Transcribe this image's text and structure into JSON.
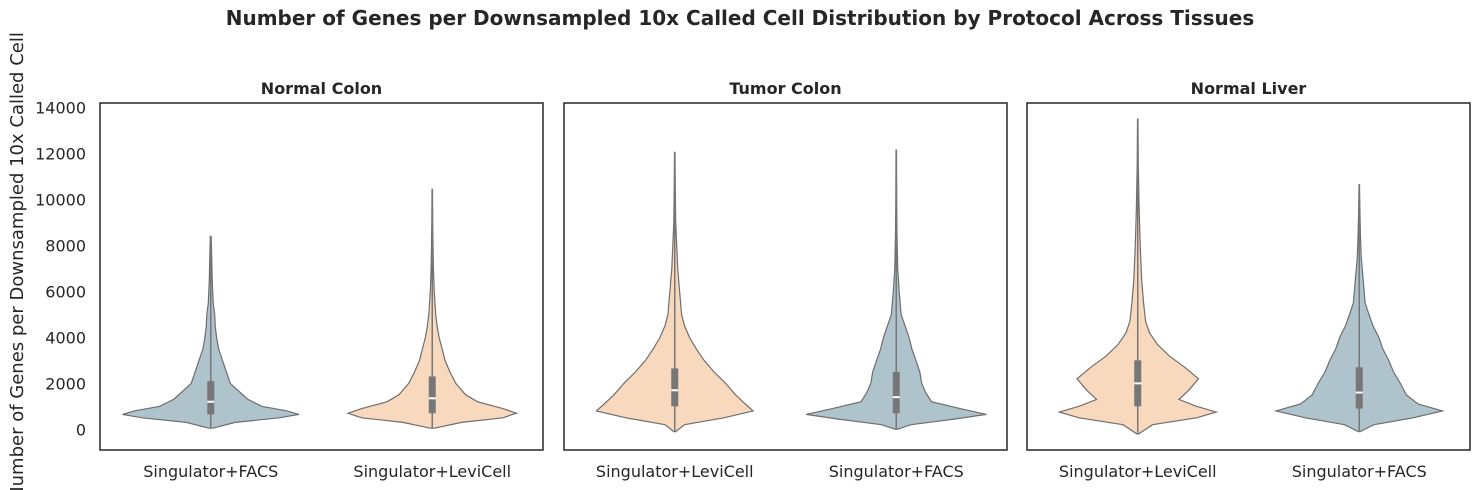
{
  "chart_data": {
    "type": "violin",
    "title": "Number of Genes per Downsampled 10x Called Cell Distribution by Protocol Across Tissues",
    "ylabel": "Number of Genes per Downsampled 10x Called Cell",
    "ylim": [
      -900,
      14200
    ],
    "yticks": [
      0,
      2000,
      4000,
      6000,
      8000,
      10000,
      12000,
      14000
    ],
    "colors": {
      "Singulator+FACS": "#aec3cb",
      "Singulator+LeviCell": "#f9d9be"
    },
    "panels": [
      {
        "title": "Normal Colon",
        "categories": [
          "Singulator+FACS",
          "Singulator+LeviCell"
        ],
        "series": [
          {
            "protocol": "Singulator+FACS",
            "min": 50,
            "q1": 650,
            "median": 1200,
            "q3": 2100,
            "whisker_high": 4100,
            "max": 8400,
            "density": [
              [
                50,
                0.02
              ],
              [
                300,
                0.25
              ],
              [
                500,
                0.7
              ],
              [
                650,
                0.9
              ],
              [
                800,
                0.78
              ],
              [
                1000,
                0.52
              ],
              [
                1300,
                0.38
              ],
              [
                1600,
                0.3
              ],
              [
                2000,
                0.2
              ],
              [
                2500,
                0.16
              ],
              [
                3000,
                0.12
              ],
              [
                3500,
                0.08
              ],
              [
                4000,
                0.06
              ],
              [
                4500,
                0.045
              ],
              [
                5000,
                0.04
              ],
              [
                5500,
                0.025
              ],
              [
                6500,
                0.015
              ],
              [
                7500,
                0.01
              ],
              [
                8400,
                0.005
              ]
            ]
          },
          {
            "protocol": "Singulator+LeviCell",
            "min": 50,
            "q1": 700,
            "median": 1350,
            "q3": 2300,
            "whisker_high": 4400,
            "max": 10450,
            "density": [
              [
                50,
                0.02
              ],
              [
                300,
                0.3
              ],
              [
                500,
                0.72
              ],
              [
                700,
                0.86
              ],
              [
                900,
                0.72
              ],
              [
                1200,
                0.46
              ],
              [
                1500,
                0.34
              ],
              [
                2000,
                0.24
              ],
              [
                2500,
                0.18
              ],
              [
                3000,
                0.13
              ],
              [
                3500,
                0.1
              ],
              [
                4000,
                0.07
              ],
              [
                4500,
                0.05
              ],
              [
                5000,
                0.035
              ],
              [
                6000,
                0.02
              ],
              [
                7000,
                0.012
              ],
              [
                8000,
                0.008
              ],
              [
                9000,
                0.005
              ],
              [
                10450,
                0.003
              ]
            ]
          }
        ]
      },
      {
        "title": "Tumor Colon",
        "categories": [
          "Singulator+LeviCell",
          "Singulator+FACS"
        ],
        "series": [
          {
            "protocol": "Singulator+LeviCell",
            "min": -100,
            "q1": 1000,
            "median": 1700,
            "q3": 2650,
            "whisker_high": 4850,
            "max": 12050,
            "density": [
              [
                -100,
                0.01
              ],
              [
                200,
                0.1
              ],
              [
                500,
                0.5
              ],
              [
                800,
                0.8
              ],
              [
                1100,
                0.72
              ],
              [
                1500,
                0.62
              ],
              [
                2000,
                0.52
              ],
              [
                2500,
                0.4
              ],
              [
                3000,
                0.3
              ],
              [
                3500,
                0.22
              ],
              [
                4000,
                0.15
              ],
              [
                4500,
                0.1
              ],
              [
                5000,
                0.07
              ],
              [
                6000,
                0.05
              ],
              [
                7000,
                0.03
              ],
              [
                8000,
                0.02
              ],
              [
                9000,
                0.01
              ],
              [
                10500,
                0.006
              ],
              [
                12050,
                0.003
              ]
            ]
          },
          {
            "protocol": "Singulator+FACS",
            "min": 0,
            "q1": 700,
            "median": 1400,
            "q3": 2500,
            "whisker_high": 4700,
            "max": 12150,
            "density": [
              [
                0,
                0.01
              ],
              [
                200,
                0.15
              ],
              [
                450,
                0.6
              ],
              [
                650,
                0.92
              ],
              [
                900,
                0.65
              ],
              [
                1200,
                0.36
              ],
              [
                1600,
                0.3
              ],
              [
                2000,
                0.26
              ],
              [
                2500,
                0.24
              ],
              [
                3000,
                0.2
              ],
              [
                3500,
                0.16
              ],
              [
                4000,
                0.13
              ],
              [
                4500,
                0.09
              ],
              [
                5000,
                0.05
              ],
              [
                6000,
                0.03
              ],
              [
                7000,
                0.015
              ],
              [
                8500,
                0.008
              ],
              [
                10000,
                0.005
              ],
              [
                12150,
                0.003
              ]
            ]
          }
        ]
      },
      {
        "title": "Normal Liver",
        "categories": [
          "Singulator+LeviCell",
          "Singulator+FACS"
        ],
        "series": [
          {
            "protocol": "Singulator+LeviCell",
            "min": -200,
            "q1": 1000,
            "median": 2000,
            "q3": 3000,
            "whisker_high": 5900,
            "max": 13500,
            "density": [
              [
                -200,
                0.01
              ],
              [
                200,
                0.15
              ],
              [
                500,
                0.6
              ],
              [
                750,
                0.8
              ],
              [
                1000,
                0.6
              ],
              [
                1300,
                0.42
              ],
              [
                1700,
                0.52
              ],
              [
                2200,
                0.62
              ],
              [
                2700,
                0.48
              ],
              [
                3200,
                0.32
              ],
              [
                3700,
                0.2
              ],
              [
                4200,
                0.12
              ],
              [
                4700,
                0.08
              ],
              [
                5500,
                0.06
              ],
              [
                6500,
                0.04
              ],
              [
                8000,
                0.025
              ],
              [
                9500,
                0.015
              ],
              [
                11500,
                0.006
              ],
              [
                13500,
                0.003
              ]
            ]
          },
          {
            "protocol": "Singulator+FACS",
            "min": -100,
            "q1": 900,
            "median": 1600,
            "q3": 2700,
            "whisker_high": 5100,
            "max": 10650,
            "density": [
              [
                -100,
                0.01
              ],
              [
                200,
                0.15
              ],
              [
                500,
                0.55
              ],
              [
                800,
                0.85
              ],
              [
                1100,
                0.6
              ],
              [
                1500,
                0.48
              ],
              [
                2000,
                0.42
              ],
              [
                2500,
                0.35
              ],
              [
                3000,
                0.3
              ],
              [
                3500,
                0.24
              ],
              [
                4000,
                0.2
              ],
              [
                4500,
                0.14
              ],
              [
                5000,
                0.1
              ],
              [
                5500,
                0.06
              ],
              [
                6500,
                0.04
              ],
              [
                7500,
                0.02
              ],
              [
                8500,
                0.012
              ],
              [
                9500,
                0.007
              ],
              [
                10650,
                0.003
              ]
            ]
          }
        ]
      }
    ]
  }
}
